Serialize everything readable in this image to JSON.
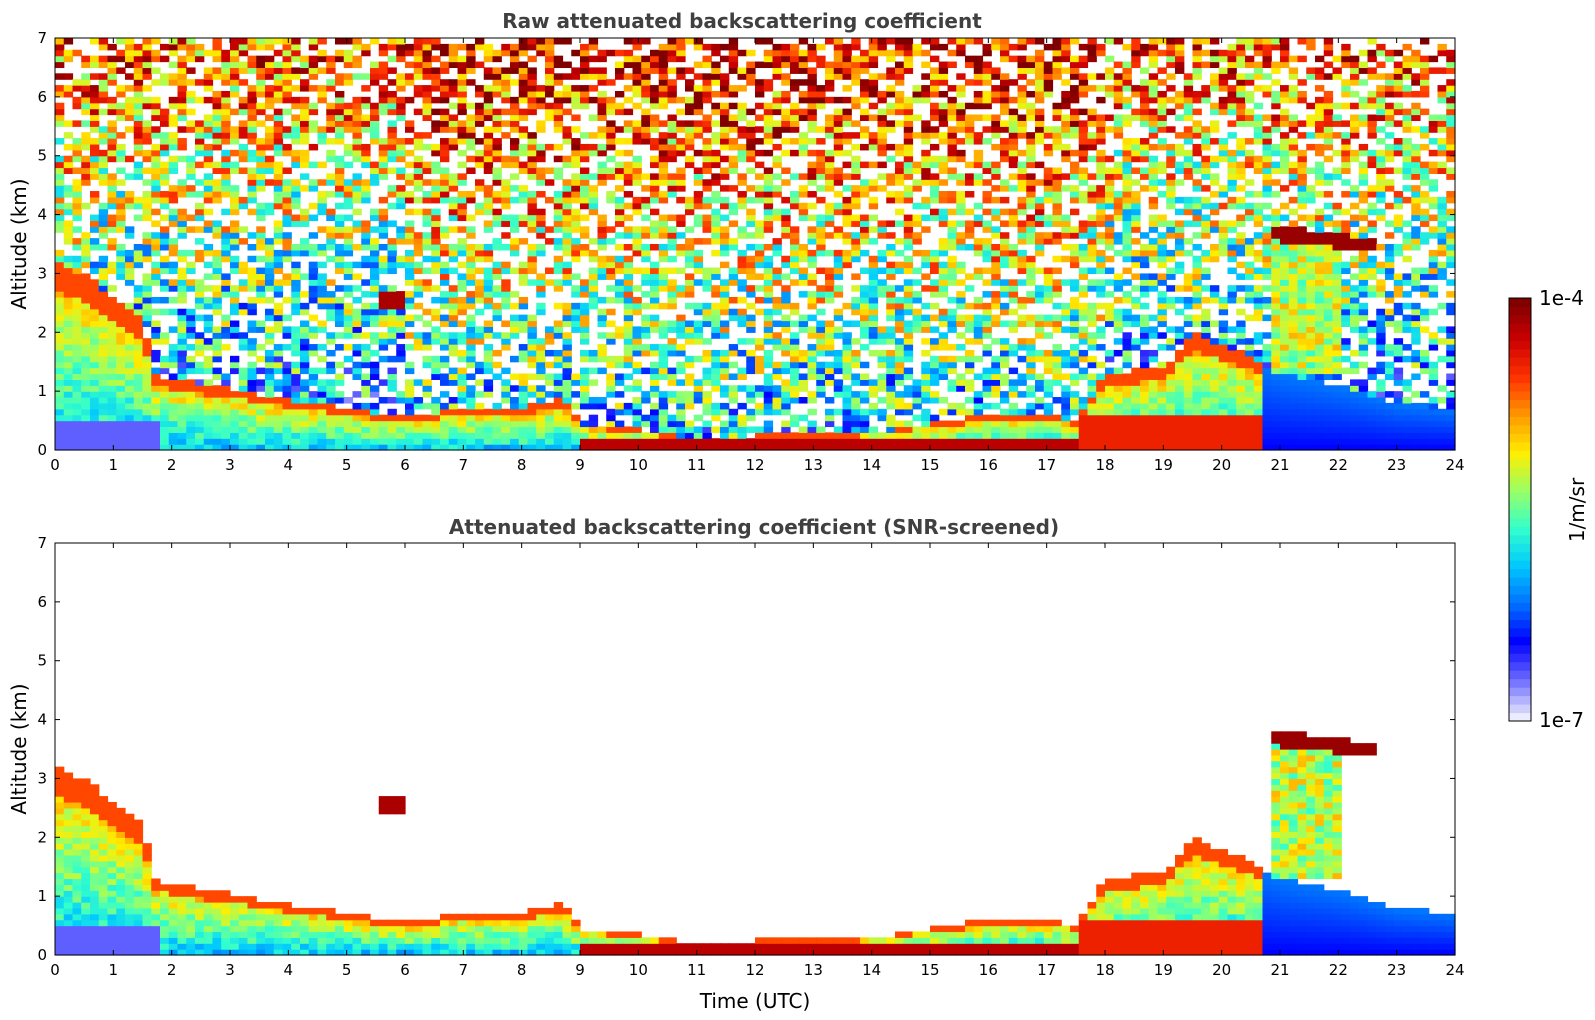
{
  "chart_data": [
    {
      "type": "heatmap",
      "title": "Raw attenuated backscattering coefficient",
      "xlabel": "",
      "ylabel": "Altitude (km)",
      "xlim": [
        0,
        24
      ],
      "ylim": [
        0,
        7
      ],
      "xticks": [
        "0",
        "1",
        "2",
        "3",
        "4",
        "5",
        "6",
        "7",
        "8",
        "9",
        "10",
        "11",
        "12",
        "13",
        "14",
        "15",
        "16",
        "17",
        "18",
        "19",
        "20",
        "21",
        "22",
        "23",
        "24"
      ],
      "yticks": [
        "0",
        "1",
        "2",
        "3",
        "4",
        "5",
        "6",
        "7"
      ],
      "screened": false,
      "noise_above_signal": true,
      "layers": [
        {
          "feature": "night boundary layer",
          "x": [
            0,
            1.6
          ],
          "top_km": [
            2.6,
            3.4
          ]
        },
        {
          "feature": "boundary layer top",
          "x": [
            1.5,
            9.0
          ],
          "y_km": [
            1.2,
            0.7
          ]
        },
        {
          "feature": "elevated layer",
          "x": [
            5.6,
            6.0
          ],
          "y_km": [
            2.6,
            2.4
          ]
        },
        {
          "feature": "daytime surface layer",
          "x": [
            9.0,
            17.5
          ],
          "y_km": [
            0.2,
            0.4
          ]
        },
        {
          "feature": "evening residual layer",
          "x": [
            17.5,
            20.7
          ],
          "top_km": [
            1.3,
            2.3
          ]
        },
        {
          "feature": "cloud layer",
          "x": [
            20.8,
            22.7
          ],
          "y_km": [
            3.65,
            3.45
          ]
        }
      ]
    },
    {
      "type": "heatmap",
      "title": "Attenuated backscattering coefficient (SNR-screened)",
      "xlabel": "Time (UTC)",
      "ylabel": "Altitude (km)",
      "xlim": [
        0,
        24
      ],
      "ylim": [
        0,
        7
      ],
      "xticks": [
        "0",
        "1",
        "2",
        "3",
        "4",
        "5",
        "6",
        "7",
        "8",
        "9",
        "10",
        "11",
        "12",
        "13",
        "14",
        "15",
        "16",
        "17",
        "18",
        "19",
        "20",
        "21",
        "22",
        "23",
        "24"
      ],
      "yticks": [
        "0",
        "1",
        "2",
        "3",
        "4",
        "5",
        "6",
        "7"
      ],
      "screened": true,
      "noise_above_signal": false
    }
  ],
  "colorbar": {
    "label": "1/m/sr",
    "max_label": "1e-4",
    "min_label": "1e-7",
    "scale": "log",
    "range": [
      1e-07,
      0.0001
    ],
    "colormap": [
      "#ececff",
      "#6a6aff",
      "#0000ff",
      "#0070ff",
      "#00c8ff",
      "#33ffcc",
      "#99ff66",
      "#ffee00",
      "#ff9900",
      "#ff3300",
      "#cc0000",
      "#800000"
    ]
  }
}
